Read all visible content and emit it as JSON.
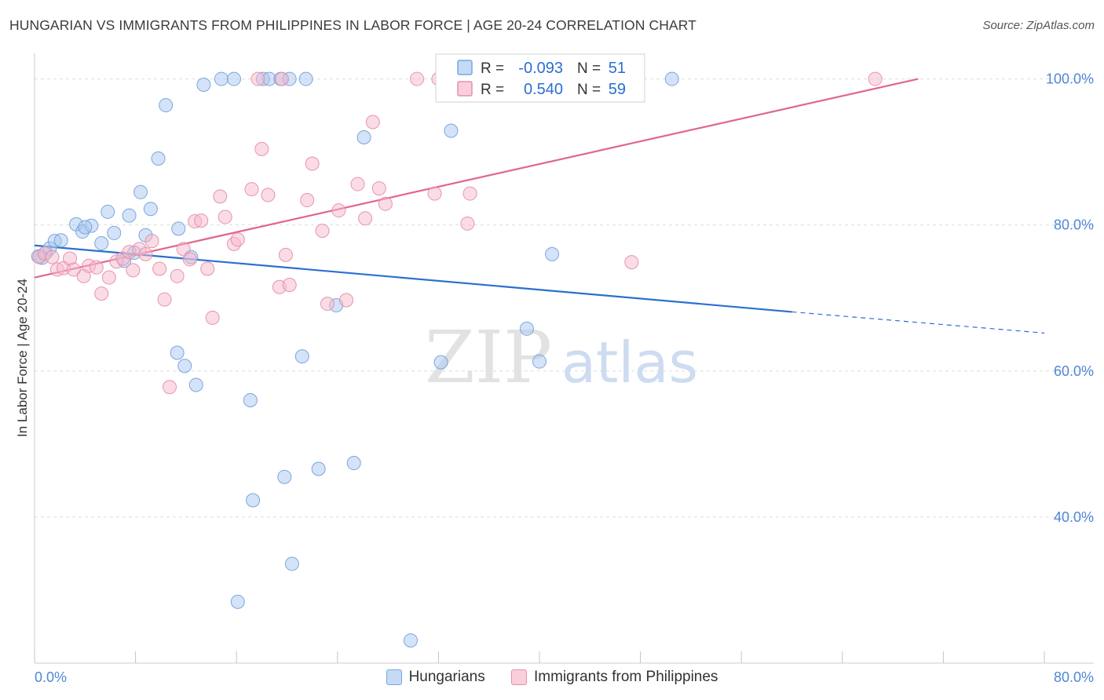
{
  "header": {
    "title": "HUNGARIAN VS IMMIGRANTS FROM PHILIPPINES IN LABOR FORCE | AGE 20-24 CORRELATION CHART",
    "source": "Source: ZipAtlas.com"
  },
  "colors": {
    "blue_fill": "#a9c8f0",
    "blue_stroke": "#6d9edb",
    "blue_line": "#2b6fd1",
    "pink_fill": "#f6b9cc",
    "pink_stroke": "#e58aa8",
    "pink_line": "#e0668f",
    "axis_label": "#4f86d6",
    "grid": "#dddddd"
  },
  "chart_data": {
    "type": "scatter",
    "title": "HUNGARIAN VS IMMIGRANTS FROM PHILIPPINES IN LABOR FORCE | AGE 20-24 CORRELATION CHART",
    "xlabel": "",
    "ylabel": "In Labor Force | Age 20-24",
    "xlim": [
      0,
      80
    ],
    "ylim": [
      20,
      103.5
    ],
    "x_tick_labels": [
      "0.0%",
      "80.0%"
    ],
    "y_ticks": [
      40,
      60,
      80,
      100
    ],
    "y_tick_labels": [
      "40.0%",
      "60.0%",
      "80.0%",
      "100.0%"
    ],
    "grid": true,
    "watermark": {
      "zip": "ZIP",
      "atlas": "atlas"
    },
    "legend_box": {
      "rows": [
        {
          "r_label": "R =",
          "r_value": "-0.093",
          "n_label": "N =",
          "n_value": "51"
        },
        {
          "r_label": "R =",
          "r_value": "0.540",
          "n_label": "N =",
          "n_value": "59"
        }
      ]
    },
    "series": [
      {
        "name": "Hungarians",
        "color": "blue",
        "r": -0.093,
        "n": 51,
        "trend": {
          "x0": 0,
          "y0": 77.2,
          "x1": 60,
          "y1": 68.1,
          "dash_to_x": 80,
          "dash_to_y": 65.2
        },
        "points": [
          [
            0.6,
            75.5
          ],
          [
            0.9,
            76.2
          ],
          [
            1.2,
            76.8
          ],
          [
            1.6,
            77.8
          ],
          [
            2.1,
            77.9
          ],
          [
            3.3,
            80.1
          ],
          [
            3.8,
            79.1
          ],
          [
            4.5,
            79.9
          ],
          [
            5.3,
            77.5
          ],
          [
            5.8,
            81.8
          ],
          [
            6.3,
            78.9
          ],
          [
            7.1,
            75.1
          ],
          [
            7.5,
            81.3
          ],
          [
            7.9,
            76.2
          ],
          [
            8.4,
            84.5
          ],
          [
            8.8,
            78.6
          ],
          [
            9.2,
            82.2
          ],
          [
            9.8,
            89.1
          ],
          [
            10.4,
            96.4
          ],
          [
            11.4,
            79.5
          ],
          [
            11.3,
            62.5
          ],
          [
            11.9,
            60.7
          ],
          [
            12.4,
            75.6
          ],
          [
            12.8,
            58.1
          ],
          [
            13.4,
            99.2
          ],
          [
            14.8,
            100.0
          ],
          [
            15.8,
            100.0
          ],
          [
            16.1,
            28.4
          ],
          [
            17.3,
            42.3
          ],
          [
            17.1,
            56.0
          ],
          [
            18.1,
            100.0
          ],
          [
            18.6,
            100.0
          ],
          [
            19.5,
            100.0
          ],
          [
            19.8,
            45.5
          ],
          [
            20.4,
            33.6
          ],
          [
            21.2,
            62.0
          ],
          [
            21.5,
            100.0
          ],
          [
            22.5,
            46.6
          ],
          [
            23.9,
            69.0
          ],
          [
            25.3,
            47.4
          ],
          [
            26.1,
            92.0
          ],
          [
            29.8,
            23.1
          ],
          [
            32.2,
            61.2
          ],
          [
            33.0,
            92.9
          ],
          [
            39.0,
            65.8
          ],
          [
            40.0,
            61.3
          ],
          [
            41.0,
            76.0
          ],
          [
            50.5,
            100.0
          ],
          [
            20.2,
            100.0
          ],
          [
            0.3,
            75.7
          ],
          [
            4.0,
            79.7
          ]
        ]
      },
      {
        "name": "Immigrants from Philippines",
        "color": "pink",
        "r": 0.54,
        "n": 59,
        "trend": {
          "x0": 0,
          "y0": 72.8,
          "x1": 70,
          "y1": 100.0
        },
        "points": [
          [
            0.4,
            75.6
          ],
          [
            0.8,
            76.1
          ],
          [
            1.4,
            75.6
          ],
          [
            1.8,
            73.9
          ],
          [
            2.3,
            74.1
          ],
          [
            2.8,
            75.4
          ],
          [
            3.1,
            73.9
          ],
          [
            3.9,
            73.0
          ],
          [
            4.3,
            74.4
          ],
          [
            4.9,
            74.2
          ],
          [
            5.3,
            70.6
          ],
          [
            5.9,
            72.8
          ],
          [
            6.5,
            75.0
          ],
          [
            7.0,
            75.4
          ],
          [
            7.5,
            76.3
          ],
          [
            7.8,
            73.8
          ],
          [
            8.3,
            76.7
          ],
          [
            8.8,
            76.0
          ],
          [
            9.3,
            77.8
          ],
          [
            9.9,
            74.0
          ],
          [
            10.3,
            69.8
          ],
          [
            10.7,
            57.8
          ],
          [
            11.3,
            73.0
          ],
          [
            11.8,
            76.7
          ],
          [
            12.3,
            75.3
          ],
          [
            12.7,
            80.5
          ],
          [
            13.2,
            80.6
          ],
          [
            13.7,
            74.0
          ],
          [
            14.1,
            67.3
          ],
          [
            14.7,
            83.9
          ],
          [
            15.1,
            81.1
          ],
          [
            15.8,
            77.4
          ],
          [
            16.1,
            78.0
          ],
          [
            17.2,
            84.9
          ],
          [
            18.0,
            90.4
          ],
          [
            18.5,
            84.1
          ],
          [
            19.4,
            71.5
          ],
          [
            20.2,
            71.8
          ],
          [
            19.9,
            75.9
          ],
          [
            21.6,
            83.4
          ],
          [
            22.0,
            88.4
          ],
          [
            22.8,
            79.2
          ],
          [
            23.2,
            69.2
          ],
          [
            24.1,
            82.0
          ],
          [
            24.7,
            69.7
          ],
          [
            25.6,
            85.6
          ],
          [
            26.2,
            80.9
          ],
          [
            26.8,
            94.1
          ],
          [
            27.3,
            85.0
          ],
          [
            27.8,
            82.9
          ],
          [
            30.3,
            100.0
          ],
          [
            31.7,
            84.3
          ],
          [
            32.0,
            100.0
          ],
          [
            34.3,
            80.2
          ],
          [
            34.5,
            84.3
          ],
          [
            47.3,
            74.9
          ],
          [
            66.6,
            100.0
          ],
          [
            17.7,
            100.0
          ],
          [
            19.6,
            100.0
          ]
        ]
      }
    ]
  },
  "bottom_legend": [
    {
      "label": "Hungarians"
    },
    {
      "label": "Immigrants from Philippines"
    }
  ]
}
